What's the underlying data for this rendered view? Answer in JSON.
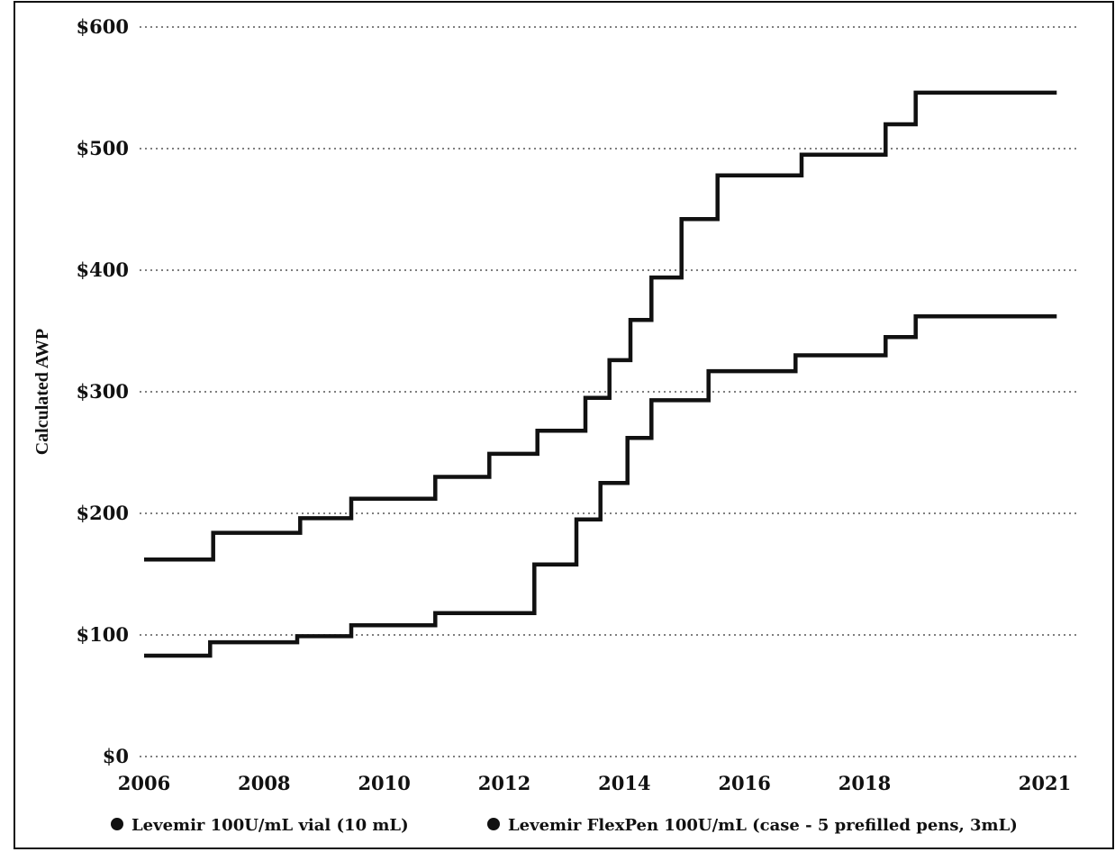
{
  "chart_data": {
    "type": "line",
    "step": true,
    "ylabel": "Calculated AWP",
    "xlabel": "",
    "title": "",
    "ylim": [
      0,
      600
    ],
    "xlim": [
      2006,
      2021.3
    ],
    "yticks": [
      0,
      100,
      200,
      300,
      400,
      500,
      600
    ],
    "ytick_labels": [
      "$0",
      "$100",
      "$200",
      "$300",
      "$400",
      "$500",
      "$600"
    ],
    "xticks": [
      2006,
      2008,
      2010,
      2012,
      2014,
      2016,
      2018,
      2021
    ],
    "xtick_labels": [
      "2006",
      "2008",
      "2010",
      "2012",
      "2014",
      "2016",
      "2018",
      "2021"
    ],
    "grid": "horizontal dotted",
    "legend_position": "bottom",
    "series_color": "#111111",
    "series": [
      {
        "name": "Levemir FlexPen 100U/mL (case - 5 prefilled pens, 3mL)",
        "x": [
          2006.0,
          2007.15,
          2008.6,
          2009.45,
          2010.85,
          2011.75,
          2012.55,
          2013.35,
          2013.75,
          2014.1,
          2014.45,
          2014.95,
          2015.55,
          2016.95,
          2018.35,
          2018.85,
          2021.2
        ],
        "y": [
          162,
          184,
          196,
          212,
          230,
          249,
          268,
          295,
          326,
          359,
          394,
          442,
          478,
          495,
          520,
          546,
          546
        ]
      },
      {
        "name": "Levemir 100U/mL vial (10 mL)",
        "x": [
          2006.0,
          2007.1,
          2008.55,
          2009.45,
          2010.85,
          2012.5,
          2013.2,
          2013.6,
          2014.05,
          2014.45,
          2015.4,
          2016.85,
          2018.35,
          2018.85,
          2021.2
        ],
        "y": [
          83,
          94,
          99,
          108,
          118,
          158,
          195,
          225,
          262,
          293,
          317,
          330,
          345,
          362,
          362
        ]
      }
    ],
    "legend": [
      "Levemir 100U/mL vial (10 mL)",
      "Levemir FlexPen 100U/mL (case - 5 prefilled pens, 3mL)"
    ]
  }
}
